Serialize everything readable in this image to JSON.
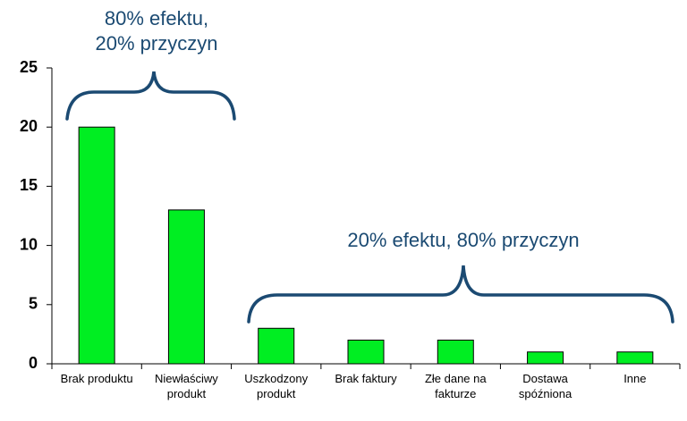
{
  "chart_data": {
    "type": "bar",
    "categories": [
      "Brak produktu",
      "Niewłaściwy\nprodukt",
      "Uszkodzony\nprodukt",
      "Brak faktury",
      "Złe dane na\nfakturze",
      "Dostawa\nspóźniona",
      "Inne"
    ],
    "values": [
      20,
      13,
      3,
      2,
      2,
      1,
      1
    ],
    "color": "#00ee22",
    "ylim": [
      0,
      25
    ],
    "yticks": [
      0,
      5,
      10,
      15,
      20,
      25
    ],
    "annotations": [
      [
        "80% efektu,",
        "20% przyczyn"
      ],
      [
        "20% efektu, 80% przyczyn"
      ]
    ]
  }
}
